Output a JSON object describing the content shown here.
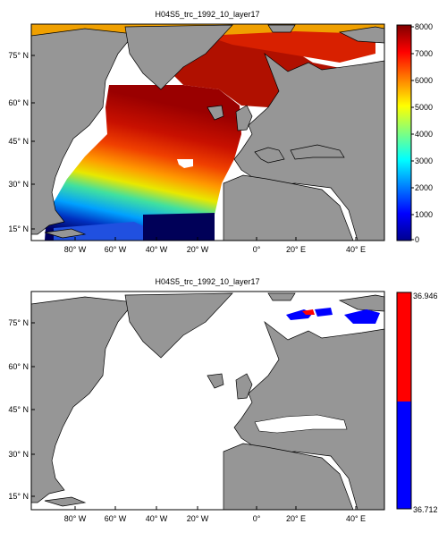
{
  "panels": [
    {
      "title": "H04S5_trc_1992_10_layer17",
      "y_ticks": [
        "75° N",
        "60° N",
        "45° N",
        "30° N",
        "15° N"
      ],
      "x_ticks": [
        "80° W",
        "60° W",
        "40° W",
        "20° W",
        "0°",
        "20° E",
        "40° E"
      ],
      "colorbar": {
        "type": "jet",
        "ticks": [
          "8000",
          "7000",
          "6000",
          "5000",
          "4000",
          "3000",
          "2000",
          "1000",
          "0"
        ],
        "range": [
          0,
          8000
        ]
      }
    },
    {
      "title": "H04S5_trc_1992_10_layer17",
      "y_ticks": [
        "75° N",
        "60° N",
        "45° N",
        "30° N",
        "15° N"
      ],
      "x_ticks": [
        "80° W",
        "60° W",
        "40° W",
        "20° W",
        "0°",
        "20° E",
        "40° E"
      ],
      "colorbar": {
        "type": "two-color",
        "ticks": [
          "36.946",
          "36.712"
        ],
        "colors": [
          "#ff0000",
          "#0000ff"
        ]
      }
    }
  ],
  "colors": {
    "land": "#969696",
    "no_data": "#ffffff",
    "frame": "#000000"
  }
}
